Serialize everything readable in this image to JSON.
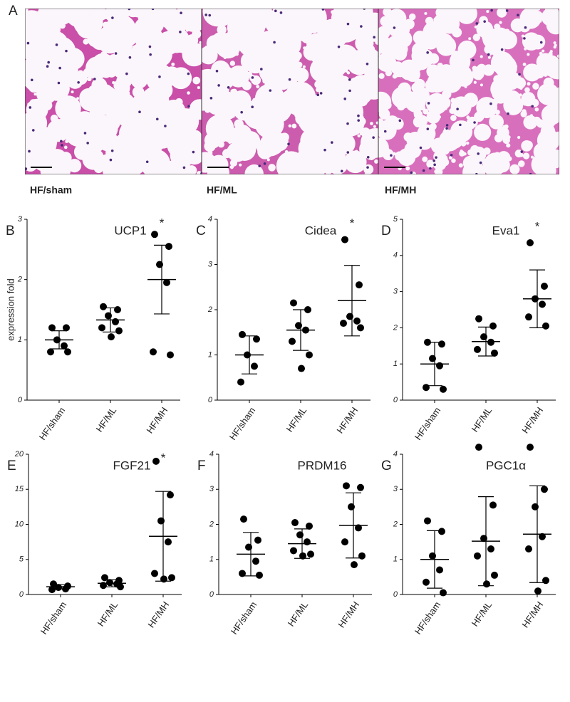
{
  "panel_a": {
    "label": "A",
    "captions": [
      "HF/sham",
      "HF/ML",
      "HF/MH"
    ]
  },
  "chart_data": [
    {
      "type": "dot",
      "label": "B",
      "title": "UCP1",
      "ylabel": "expression fold",
      "annotation": "*",
      "categories": [
        "HF/sham",
        "HF/ML",
        "HF/MH"
      ],
      "points": [
        [
          1.2,
          1.2,
          1.0,
          0.9,
          0.8,
          0.8
        ],
        [
          1.55,
          1.5,
          1.4,
          1.3,
          1.2,
          1.15,
          1.05
        ],
        [
          2.75,
          2.55,
          2.25,
          1.95,
          0.8,
          0.75
        ]
      ],
      "means": [
        1.0,
        1.33,
        2.0
      ],
      "errors": [
        0.15,
        0.2,
        0.57
      ],
      "ylim": [
        0,
        3
      ],
      "yticks": [
        0,
        1,
        2,
        3
      ]
    },
    {
      "type": "dot",
      "label": "C",
      "title": "Cidea",
      "annotation": "*",
      "categories": [
        "HF/sham",
        "HF/ML",
        "HF/MH"
      ],
      "points": [
        [
          1.45,
          1.35,
          1.0,
          0.75,
          0.4
        ],
        [
          2.15,
          2.0,
          1.65,
          1.55,
          1.3,
          1.0,
          0.7
        ],
        [
          3.55,
          2.55,
          1.85,
          1.75,
          1.7,
          1.6
        ]
      ],
      "means": [
        1.0,
        1.55,
        2.2
      ],
      "errors": [
        0.42,
        0.45,
        0.78
      ],
      "ylim": [
        0,
        4
      ],
      "yticks": [
        0,
        1,
        2,
        3,
        4
      ]
    },
    {
      "type": "dot",
      "label": "D",
      "title": "Eva1",
      "annotation": "*",
      "categories": [
        "HF/sham",
        "HF/ML",
        "HF/MH"
      ],
      "points": [
        [
          1.6,
          1.55,
          1.15,
          0.95,
          0.35,
          0.3
        ],
        [
          2.25,
          2.05,
          1.75,
          1.6,
          1.4,
          1.3
        ],
        [
          4.35,
          3.15,
          2.8,
          2.65,
          2.3,
          2.05
        ]
      ],
      "means": [
        1.0,
        1.62,
        2.8
      ],
      "errors": [
        0.6,
        0.4,
        0.8
      ],
      "ylim": [
        0,
        5
      ],
      "yticks": [
        0,
        1,
        2,
        3,
        4,
        5
      ]
    },
    {
      "type": "dot",
      "label": "E",
      "title": "FGF21",
      "annotation": "*",
      "categories": [
        "HF/sham",
        "HF/ML",
        "HF/MH"
      ],
      "points": [
        [
          1.5,
          1.2,
          1.0,
          0.8,
          0.7
        ],
        [
          2.4,
          2.0,
          1.7,
          1.5,
          1.3,
          1.1
        ],
        [
          19,
          14.2,
          10.5,
          7.5,
          3,
          2.4,
          2.2
        ]
      ],
      "means": [
        1.1,
        1.6,
        8.3
      ],
      "errors": [
        0.3,
        0.5,
        6.4
      ],
      "ylim": [
        0,
        20
      ],
      "yticks": [
        0,
        5,
        10,
        15,
        20
      ]
    },
    {
      "type": "dot",
      "label": "F",
      "title": "PRDM16",
      "categories": [
        "HF/sham",
        "HF/ML",
        "HF/MH"
      ],
      "points": [
        [
          2.15,
          1.55,
          1.35,
          0.95,
          0.6,
          0.55
        ],
        [
          2.05,
          1.95,
          1.7,
          1.5,
          1.25,
          1.15,
          1.1
        ],
        [
          3.1,
          3.05,
          2.5,
          1.9,
          1.5,
          1.1,
          0.85
        ]
      ],
      "means": [
        1.15,
        1.45,
        1.97
      ],
      "errors": [
        0.62,
        0.42,
        0.93
      ],
      "ylim": [
        0,
        4
      ],
      "yticks": [
        0,
        1,
        2,
        3,
        4
      ]
    },
    {
      "type": "dot",
      "label": "G",
      "title": "PGC1α",
      "categories": [
        "HF/sham",
        "HF/ML",
        "HF/MH"
      ],
      "points": [
        [
          2.1,
          1.8,
          1.1,
          0.7,
          0.35,
          0.05
        ],
        [
          4.2,
          2.55,
          1.6,
          1.3,
          1.1,
          0.55,
          0.3
        ],
        [
          4.2,
          3.0,
          2.5,
          1.65,
          1.3,
          0.4,
          0.1
        ]
      ],
      "means": [
        1.0,
        1.52,
        1.72
      ],
      "errors": [
        0.82,
        1.27,
        1.38
      ],
      "ylim": [
        0,
        4
      ],
      "yticks": [
        0,
        1,
        2,
        3,
        4
      ]
    }
  ]
}
